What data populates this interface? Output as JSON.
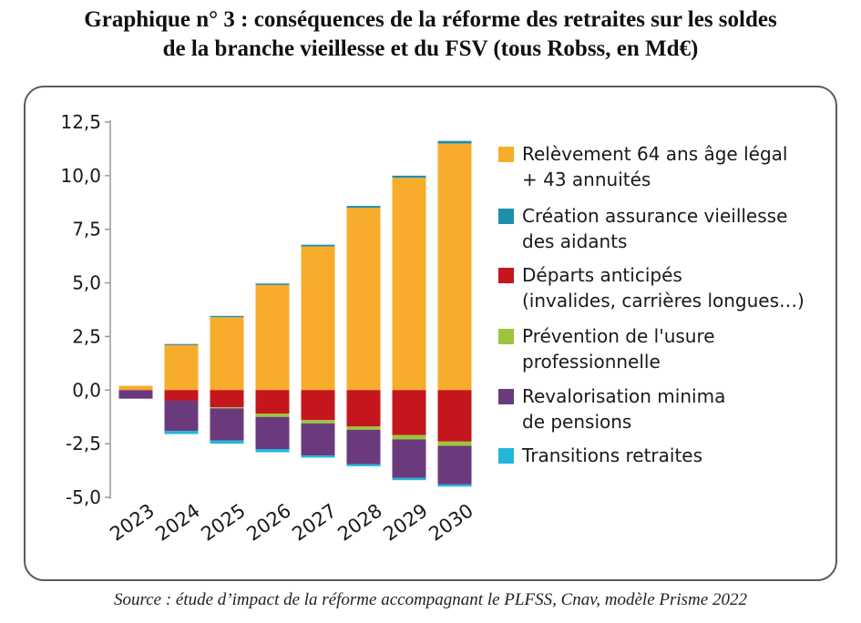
{
  "title_line1": "Graphique n° 3 : conséquences de la réforme des retraites sur les soldes",
  "title_line2": "de la branche vieillesse et du FSV (tous Robss, en Md€)",
  "source": "Source : étude d’impact de la réforme accompagnant le PLFSS, Cnav, modèle Prisme 2022",
  "chart_data": {
    "type": "bar",
    "stacked": true,
    "categories": [
      "2023",
      "2024",
      "2025",
      "2026",
      "2027",
      "2028",
      "2029",
      "2030"
    ],
    "ylim": [
      -5.0,
      12.5
    ],
    "yticks": [
      "12,5",
      "10,0",
      "7,5",
      "5,0",
      "2,5",
      "0,0",
      "-2,5",
      "-5,0"
    ],
    "ytick_values": [
      12.5,
      10.0,
      7.5,
      5.0,
      2.5,
      0.0,
      -2.5,
      -5.0
    ],
    "grid": false,
    "legend_position": "right",
    "series": [
      {
        "name": "Relèvement 64 ans âge légal + 43 annuités",
        "legend_lines": [
          "Relèvement 64 ans âge légal",
          "+ 43 annuités"
        ],
        "color": "#f8ac2c",
        "values": [
          0.2,
          2.1,
          3.4,
          4.9,
          6.7,
          8.5,
          9.9,
          11.5
        ]
      },
      {
        "name": "Création assurance vieillesse des aidants",
        "legend_lines": [
          "Création assurance vieillesse",
          "des aidants"
        ],
        "color": "#1f8fae",
        "values": [
          0.0,
          0.05,
          0.06,
          0.07,
          0.08,
          0.09,
          0.1,
          0.12
        ]
      },
      {
        "name": "Départs anticipés (invalides, carrières longues…)",
        "legend_lines": [
          "Départs anticipés",
          "(invalides, carrières longues…)"
        ],
        "color": "#c4161c",
        "values": [
          0.0,
          -0.5,
          -0.8,
          -1.1,
          -1.4,
          -1.7,
          -2.1,
          -2.4
        ]
      },
      {
        "name": "Prévention de l'usure professionnelle",
        "legend_lines": [
          "Prévention de l'usure",
          "professionnelle"
        ],
        "color": "#9cc43c",
        "values": [
          0.0,
          0.0,
          -0.05,
          -0.15,
          -0.15,
          -0.15,
          -0.2,
          -0.2
        ]
      },
      {
        "name": "Revalorisation minima de pensions",
        "legend_lines": [
          "Revalorisation minima",
          "de pensions"
        ],
        "color": "#6b3a7d",
        "values": [
          -0.4,
          -1.4,
          -1.5,
          -1.5,
          -1.5,
          -1.6,
          -1.8,
          -1.8
        ]
      },
      {
        "name": "Transitions retraites",
        "legend_lines": [
          "Transitions retraites"
        ],
        "color": "#23b6dd",
        "values": [
          0.0,
          -0.15,
          -0.15,
          -0.15,
          -0.1,
          -0.1,
          -0.1,
          -0.1
        ]
      }
    ]
  }
}
